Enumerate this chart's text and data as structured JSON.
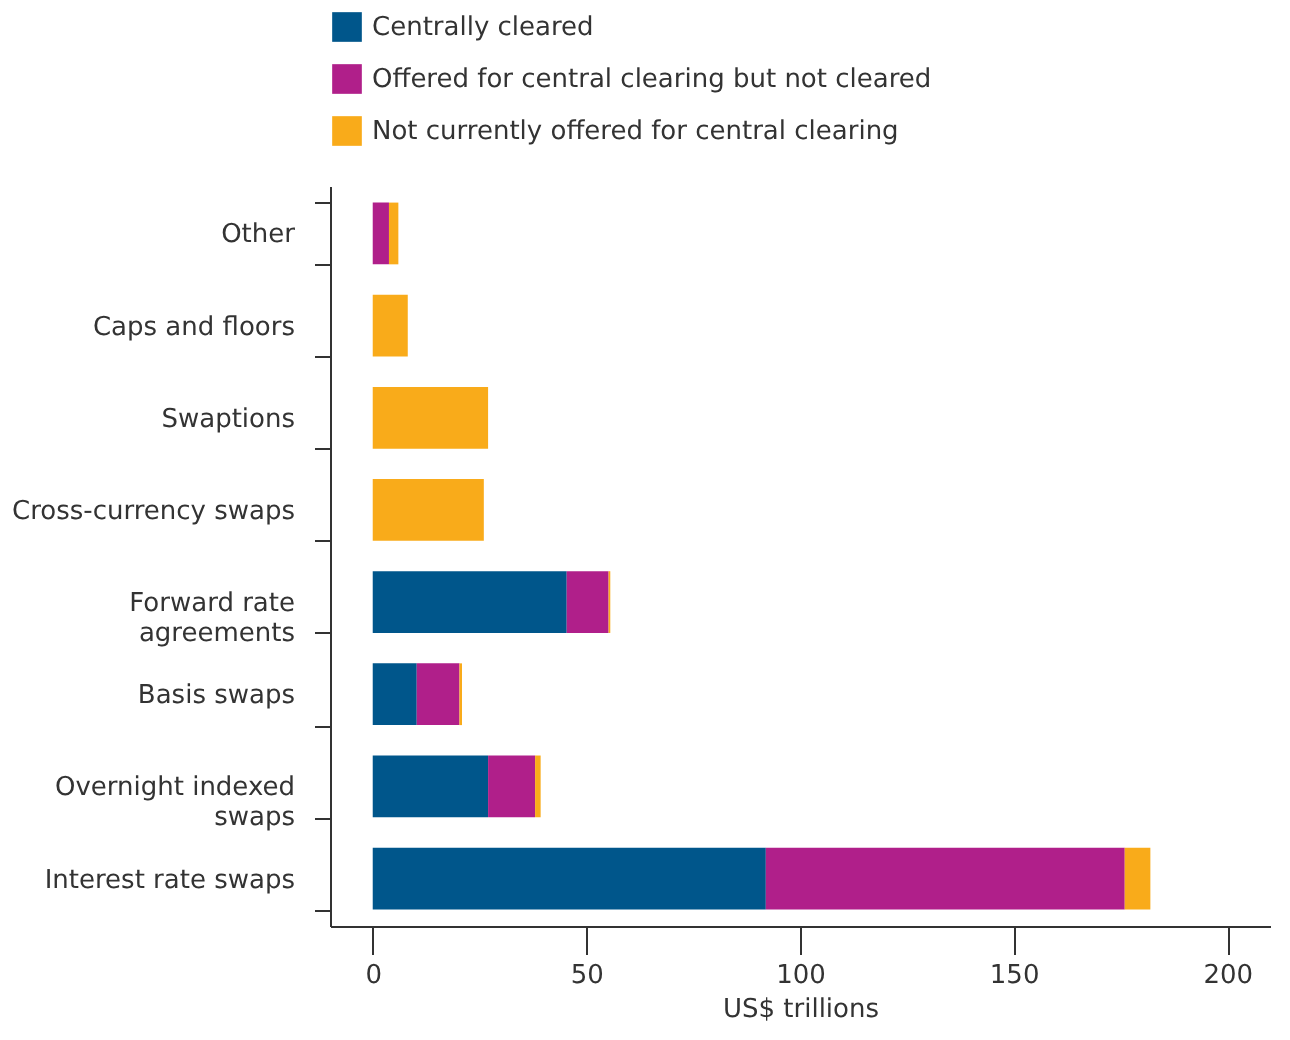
{
  "chart_data": {
    "type": "bar",
    "orientation": "horizontal",
    "stacked": true,
    "xlabel": "US$ trillions",
    "categories": [
      "Other",
      "Caps and floors",
      "Swaptions",
      "Cross-currency swaps",
      "Forward rate agreements",
      "Basis swaps",
      "Overnight indexed swaps",
      "Interest rate swaps"
    ],
    "series": [
      {
        "name": "Centrally cleared",
        "color": "#00568b",
        "values": [
          0,
          0,
          0,
          0,
          45.4,
          10.3,
          27,
          92
        ]
      },
      {
        "name": "Offered for central clearing but not cleared",
        "color": "#b01f8a",
        "values": [
          3.8,
          0,
          0,
          0,
          9.8,
          10,
          11,
          84
        ]
      },
      {
        "name": "Not currently offered for central clearing",
        "color": "#f9ab1a",
        "values": [
          2.2,
          8.2,
          27,
          26,
          0.4,
          0.6,
          1.3,
          6
        ]
      }
    ],
    "xlim": [
      -10,
      210
    ],
    "xticks": [
      0,
      50,
      100,
      150,
      200
    ],
    "grid": false,
    "legend": "top left"
  }
}
